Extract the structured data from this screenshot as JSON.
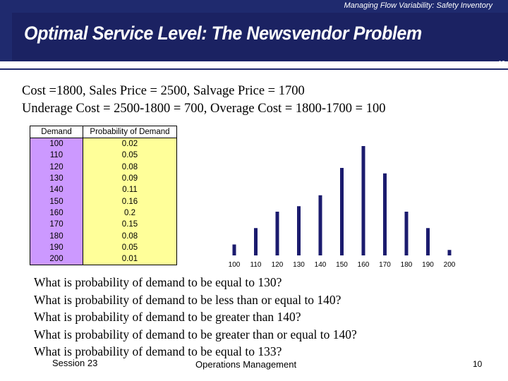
{
  "header": {
    "subtitle": "Managing Flow Variability:  Safety Inventory",
    "title": "Optimal Service Level:  The Newsvendor Problem",
    "slide_number": "10"
  },
  "cost_lines": [
    "Cost =1800, Sales Price = 2500, Salvage Price = 1700",
    "Underage Cost = 2500-1800 = 700, Overage Cost = 1800-1700 = 100"
  ],
  "table": {
    "headers": [
      "Demand",
      "Probability of Demand"
    ],
    "rows": [
      [
        "100",
        "0.02"
      ],
      [
        "110",
        "0.05"
      ],
      [
        "120",
        "0.08"
      ],
      [
        "130",
        "0.09"
      ],
      [
        "140",
        "0.11"
      ],
      [
        "150",
        "0.16"
      ],
      [
        "160",
        "0.2"
      ],
      [
        "170",
        "0.15"
      ],
      [
        "180",
        "0.08"
      ],
      [
        "190",
        "0.05"
      ],
      [
        "200",
        "0.01"
      ]
    ]
  },
  "chart_data": {
    "type": "bar",
    "categories": [
      "100",
      "110",
      "120",
      "130",
      "140",
      "150",
      "160",
      "170",
      "180",
      "190",
      "200"
    ],
    "values": [
      0.02,
      0.05,
      0.08,
      0.09,
      0.11,
      0.16,
      0.2,
      0.15,
      0.08,
      0.05,
      0.01
    ],
    "ylim": [
      0,
      0.2
    ],
    "bar_color": "#1b1b6e",
    "grid": false
  },
  "questions": [
    "What is probability of demand to be equal to 130?",
    "What is probability of demand to be less than or equal to 140?",
    "What is probability of demand to be greater than 140?",
    "What is probability of demand to be greater than or equal to 140?",
    "What is probability of demand to be equal to 133?"
  ],
  "footer": {
    "session": "Session 23",
    "course": "Operations Management",
    "page": "10"
  }
}
